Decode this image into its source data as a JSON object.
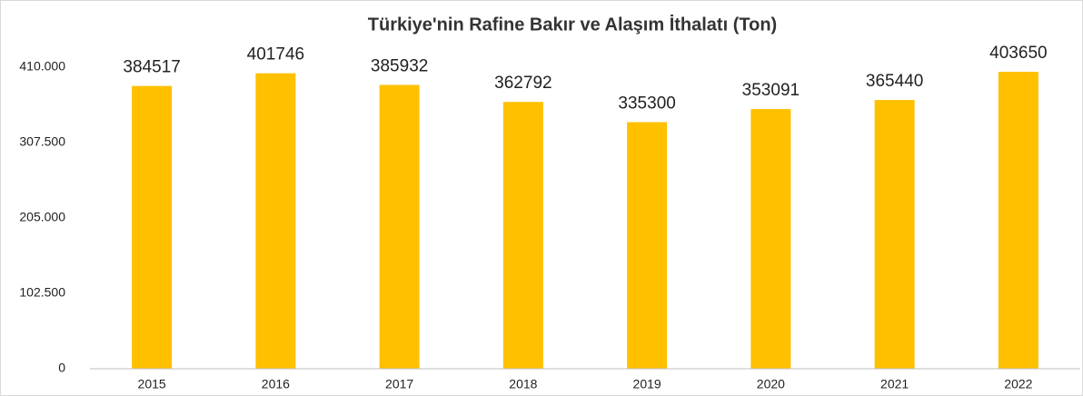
{
  "chart_data": {
    "type": "bar",
    "title": "Türkiye'nin Rafine Bakır ve Alaşım İthalatı (Ton)",
    "categories": [
      "2015",
      "2016",
      "2017",
      "2018",
      "2019",
      "2020",
      "2021",
      "2022"
    ],
    "values": [
      384517,
      401746,
      385932,
      362792,
      335300,
      353091,
      365440,
      403650
    ],
    "color": "#ffc000",
    "ylim": [
      0,
      410000
    ],
    "yticks": [
      0,
      {
        "value": 102500,
        "label": "102.500"
      },
      {
        "value": 205000,
        "label": "205.000"
      },
      {
        "value": 307500,
        "label": "307.500"
      },
      {
        "value": 410000,
        "label": "410.000"
      }
    ],
    "grid": false
  }
}
